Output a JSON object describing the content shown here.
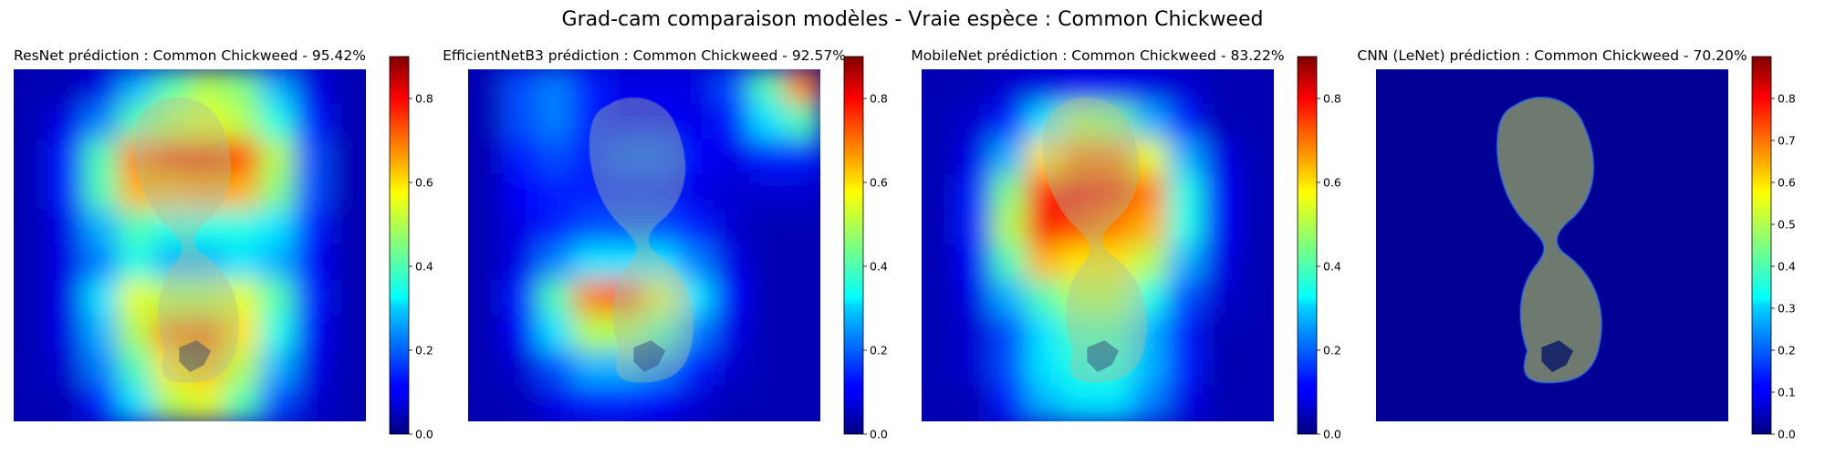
{
  "chart_data": {
    "type": "heatmap",
    "title": "Grad-cam comparaison modèles - Vraie espèce : Common Chickweed",
    "true_species": "Common Chickweed",
    "colormap": "jet",
    "panels": [
      {
        "model": "ResNet",
        "title": "ResNet prédiction : Common Chickweed - 95.42%",
        "predicted_class": "Common Chickweed",
        "confidence_pct": 95.42,
        "colorbar": {
          "min": 0.0,
          "max": 0.9,
          "ticks": [
            "0.0",
            "0.2",
            "0.4",
            "0.6",
            "0.8"
          ]
        },
        "heat": [
          [
            0.05,
            0.05,
            0.1,
            0.3,
            0.45,
            0.55,
            0.5,
            0.3,
            0.1,
            0.05
          ],
          [
            0.05,
            0.1,
            0.25,
            0.45,
            0.55,
            0.6,
            0.55,
            0.4,
            0.15,
            0.05
          ],
          [
            0.05,
            0.15,
            0.45,
            0.75,
            0.85,
            0.88,
            0.8,
            0.55,
            0.2,
            0.05
          ],
          [
            0.05,
            0.15,
            0.45,
            0.7,
            0.7,
            0.72,
            0.7,
            0.5,
            0.2,
            0.05
          ],
          [
            0.05,
            0.1,
            0.3,
            0.45,
            0.4,
            0.4,
            0.4,
            0.35,
            0.15,
            0.05
          ],
          [
            0.05,
            0.1,
            0.25,
            0.4,
            0.3,
            0.3,
            0.35,
            0.3,
            0.12,
            0.05
          ],
          [
            0.05,
            0.1,
            0.35,
            0.6,
            0.55,
            0.55,
            0.6,
            0.45,
            0.15,
            0.05
          ],
          [
            0.05,
            0.1,
            0.3,
            0.55,
            0.75,
            0.78,
            0.65,
            0.4,
            0.12,
            0.05
          ],
          [
            0.05,
            0.08,
            0.25,
            0.45,
            0.65,
            0.7,
            0.55,
            0.3,
            0.1,
            0.05
          ],
          [
            0.05,
            0.05,
            0.15,
            0.35,
            0.55,
            0.6,
            0.45,
            0.2,
            0.08,
            0.05
          ]
        ]
      },
      {
        "model": "EfficientNetB3",
        "title": "EfficientNetB3 prédiction : Common Chickweed - 92.57%",
        "predicted_class": "Common Chickweed",
        "confidence_pct": 92.57,
        "colorbar": {
          "min": 0.0,
          "max": 0.9,
          "ticks": [
            "0.0",
            "0.2",
            "0.4",
            "0.6",
            "0.8"
          ]
        },
        "heat": [
          [
            0.05,
            0.2,
            0.25,
            0.15,
            0.1,
            0.1,
            0.1,
            0.2,
            0.45,
            0.75
          ],
          [
            0.05,
            0.2,
            0.25,
            0.15,
            0.12,
            0.12,
            0.1,
            0.15,
            0.35,
            0.45
          ],
          [
            0.05,
            0.15,
            0.2,
            0.15,
            0.2,
            0.2,
            0.12,
            0.1,
            0.15,
            0.15
          ],
          [
            0.05,
            0.12,
            0.15,
            0.15,
            0.15,
            0.15,
            0.1,
            0.08,
            0.08,
            0.08
          ],
          [
            0.05,
            0.1,
            0.15,
            0.2,
            0.2,
            0.2,
            0.15,
            0.08,
            0.05,
            0.05
          ],
          [
            0.05,
            0.1,
            0.25,
            0.35,
            0.35,
            0.35,
            0.25,
            0.1,
            0.05,
            0.05
          ],
          [
            0.05,
            0.15,
            0.45,
            0.75,
            0.8,
            0.6,
            0.35,
            0.12,
            0.05,
            0.05
          ],
          [
            0.05,
            0.12,
            0.35,
            0.55,
            0.55,
            0.45,
            0.25,
            0.1,
            0.05,
            0.05
          ],
          [
            0.05,
            0.08,
            0.2,
            0.3,
            0.3,
            0.25,
            0.15,
            0.08,
            0.05,
            0.05
          ],
          [
            0.05,
            0.05,
            0.1,
            0.15,
            0.15,
            0.12,
            0.08,
            0.05,
            0.05,
            0.05
          ]
        ]
      },
      {
        "model": "MobileNet",
        "title": "MobileNet prédiction : Common Chickweed - 83.22%",
        "predicted_class": "Common Chickweed",
        "confidence_pct": 83.22,
        "colorbar": {
          "min": 0.0,
          "max": 0.9,
          "ticks": [
            "0.0",
            "0.2",
            "0.4",
            "0.6",
            "0.8"
          ]
        },
        "heat": [
          [
            0.05,
            0.05,
            0.08,
            0.1,
            0.12,
            0.12,
            0.1,
            0.08,
            0.05,
            0.05
          ],
          [
            0.05,
            0.08,
            0.15,
            0.35,
            0.55,
            0.5,
            0.3,
            0.15,
            0.05,
            0.05
          ],
          [
            0.05,
            0.1,
            0.3,
            0.65,
            0.75,
            0.75,
            0.6,
            0.3,
            0.1,
            0.05
          ],
          [
            0.05,
            0.15,
            0.5,
            0.85,
            0.88,
            0.85,
            0.75,
            0.4,
            0.12,
            0.05
          ],
          [
            0.05,
            0.15,
            0.55,
            0.88,
            0.8,
            0.75,
            0.7,
            0.4,
            0.12,
            0.05
          ],
          [
            0.05,
            0.12,
            0.45,
            0.7,
            0.65,
            0.65,
            0.55,
            0.3,
            0.1,
            0.05
          ],
          [
            0.05,
            0.1,
            0.3,
            0.45,
            0.55,
            0.55,
            0.4,
            0.2,
            0.08,
            0.05
          ],
          [
            0.05,
            0.08,
            0.2,
            0.35,
            0.45,
            0.45,
            0.3,
            0.15,
            0.05,
            0.05
          ],
          [
            0.05,
            0.08,
            0.2,
            0.35,
            0.4,
            0.4,
            0.3,
            0.15,
            0.05,
            0.05
          ],
          [
            0.05,
            0.05,
            0.15,
            0.3,
            0.35,
            0.35,
            0.25,
            0.1,
            0.05,
            0.05
          ]
        ]
      },
      {
        "model": "CNN (LeNet)",
        "title": "CNN (LeNet) prédiction : Common Chickweed - 70.20%",
        "predicted_class": "Common Chickweed",
        "confidence_pct": 70.2,
        "colorbar": {
          "min": 0.0,
          "max": 0.9,
          "ticks": [
            "0.0",
            "0.1",
            "0.2",
            "0.3",
            "0.4",
            "0.5",
            "0.6",
            "0.7",
            "0.8"
          ]
        },
        "heat": [
          [
            0.02,
            0.02,
            0.02,
            0.02,
            0.02,
            0.02,
            0.02,
            0.02,
            0.02,
            0.02
          ],
          [
            0.02,
            0.02,
            0.02,
            0.02,
            0.02,
            0.02,
            0.02,
            0.02,
            0.02,
            0.02
          ],
          [
            0.02,
            0.02,
            0.02,
            0.02,
            0.02,
            0.02,
            0.02,
            0.02,
            0.02,
            0.02
          ],
          [
            0.02,
            0.02,
            0.02,
            0.02,
            0.02,
            0.02,
            0.02,
            0.02,
            0.02,
            0.02
          ],
          [
            0.02,
            0.02,
            0.02,
            0.02,
            0.02,
            0.02,
            0.02,
            0.02,
            0.02,
            0.02
          ],
          [
            0.02,
            0.02,
            0.02,
            0.02,
            0.02,
            0.02,
            0.02,
            0.02,
            0.02,
            0.02
          ],
          [
            0.02,
            0.02,
            0.02,
            0.02,
            0.02,
            0.02,
            0.02,
            0.02,
            0.02,
            0.02
          ],
          [
            0.02,
            0.02,
            0.02,
            0.02,
            0.02,
            0.02,
            0.02,
            0.02,
            0.02,
            0.02
          ],
          [
            0.02,
            0.02,
            0.02,
            0.02,
            0.02,
            0.02,
            0.02,
            0.02,
            0.02,
            0.02
          ],
          [
            0.02,
            0.02,
            0.02,
            0.02,
            0.02,
            0.02,
            0.02,
            0.02,
            0.02,
            0.02
          ]
        ]
      }
    ]
  }
}
